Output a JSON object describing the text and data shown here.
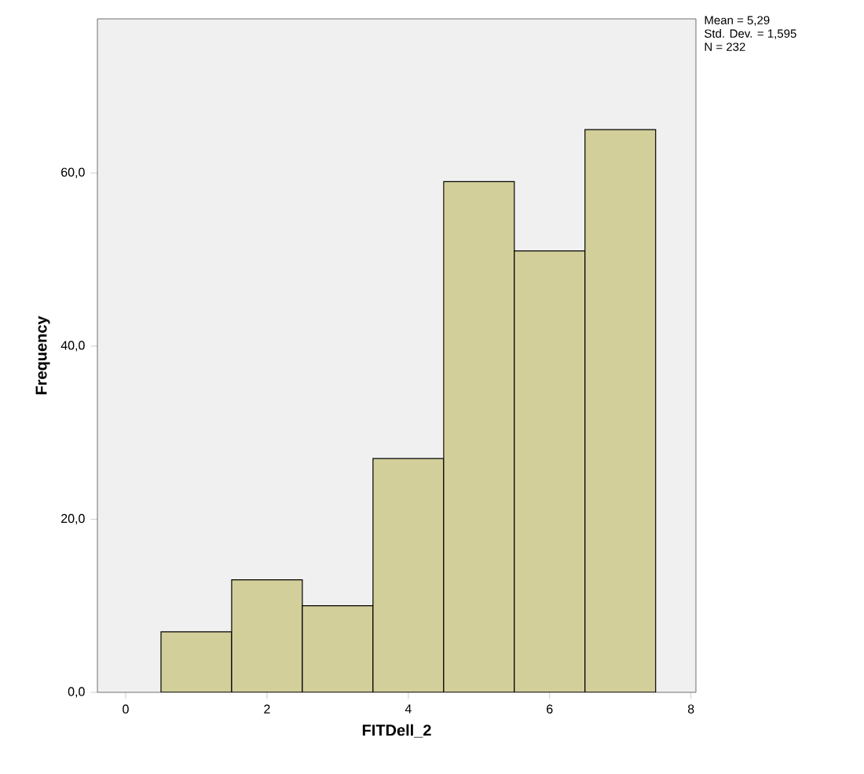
{
  "chart_data": {
    "type": "histogram",
    "xlabel": "FITDell_2",
    "ylabel": "Frequency",
    "bins": [
      0.5,
      1.5,
      2.5,
      3.5,
      4.5,
      5.5,
      6.5,
      7.5
    ],
    "values": [
      7,
      13,
      10,
      27,
      59,
      51,
      65
    ],
    "color": "#d3cf9a",
    "xlim": [
      -0.4,
      8.07
    ],
    "ylim": [
      0,
      77.8
    ],
    "xticks": [
      0,
      2,
      4,
      6,
      8
    ],
    "yticks": [
      {
        "value": 0,
        "label": "0,0"
      },
      {
        "value": 20,
        "label": "20,0"
      },
      {
        "value": 40,
        "label": "40,0"
      },
      {
        "value": 60,
        "label": "60,0"
      }
    ],
    "annotations": [
      "Mean = 5,29",
      "Std. Dev. = 1,595",
      "N = 232"
    ],
    "grid": false
  }
}
